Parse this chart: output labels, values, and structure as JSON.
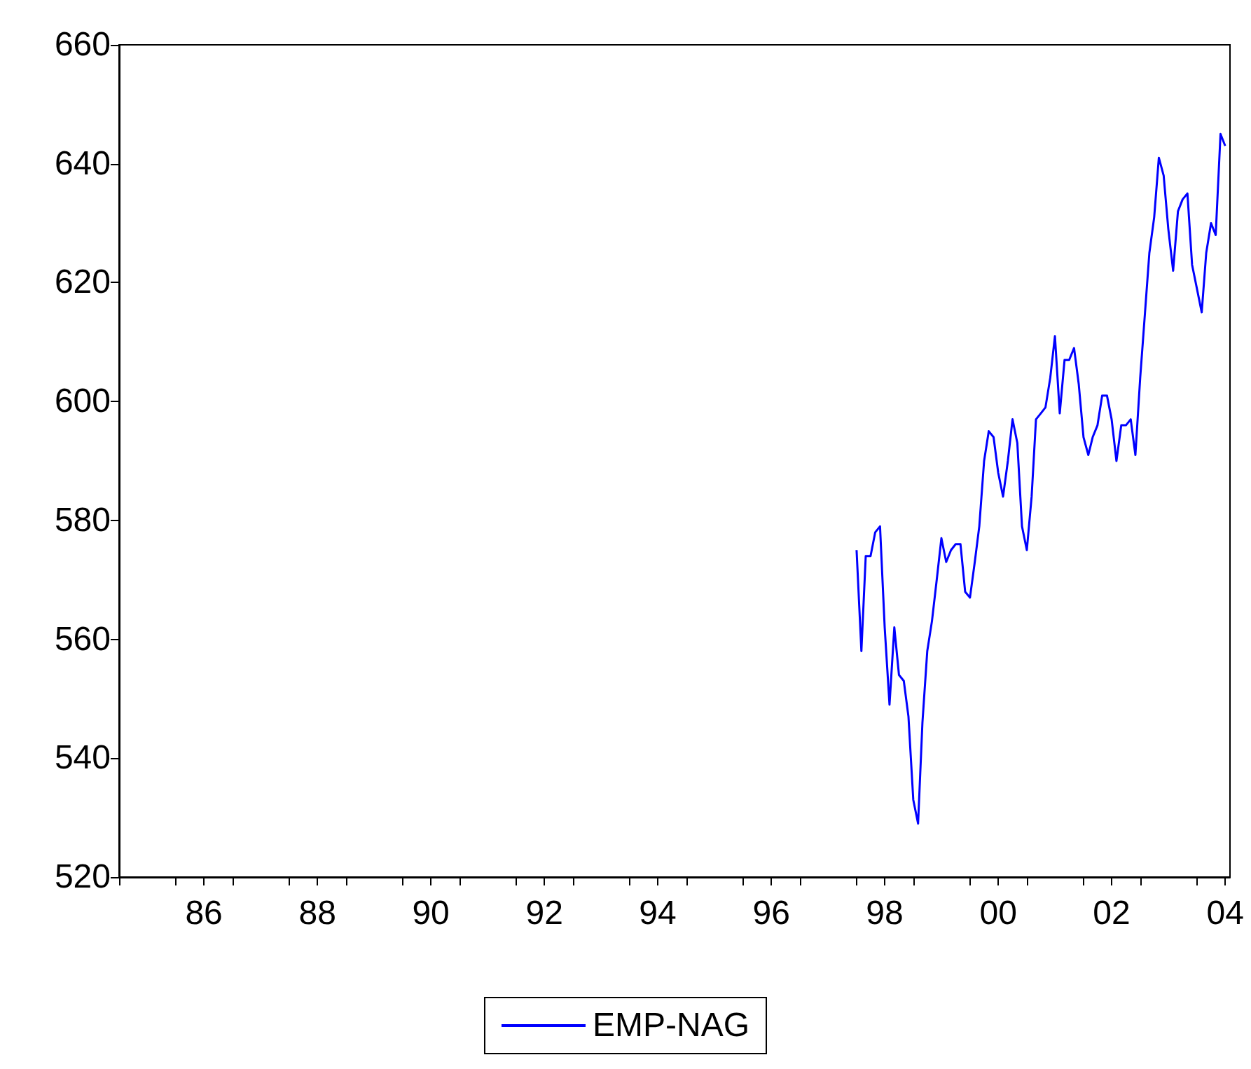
{
  "chart_data": {
    "type": "line",
    "x": [
      "1998-01",
      "1998-02",
      "1998-03",
      "1998-04",
      "1998-05",
      "1998-06",
      "1998-07",
      "1998-08",
      "1998-09",
      "1998-10",
      "1998-11",
      "1998-12",
      "1999-01",
      "1999-02",
      "1999-03",
      "1999-04",
      "1999-05",
      "1999-06",
      "1999-07",
      "1999-08",
      "1999-09",
      "1999-10",
      "1999-11",
      "1999-12",
      "2000-01",
      "2000-02",
      "2000-03",
      "2000-04",
      "2000-05",
      "2000-06",
      "2000-07",
      "2000-08",
      "2000-09",
      "2000-10",
      "2000-11",
      "2000-12",
      "2001-01",
      "2001-02",
      "2001-03",
      "2001-04",
      "2001-05",
      "2001-06",
      "2001-07",
      "2001-08",
      "2001-09",
      "2001-10",
      "2001-11",
      "2001-12",
      "2002-01",
      "2002-02",
      "2002-03",
      "2002-04",
      "2002-05",
      "2002-06",
      "2002-07",
      "2002-08",
      "2002-09",
      "2002-10",
      "2002-11",
      "2002-12",
      "2003-01",
      "2003-02",
      "2003-03",
      "2003-04",
      "2003-05",
      "2003-06",
      "2003-07",
      "2003-08",
      "2003-09",
      "2003-10",
      "2003-11",
      "2003-12",
      "2004-01",
      "2004-02",
      "2004-03",
      "2004-04",
      "2004-05",
      "2004-06",
      "2004-07"
    ],
    "series": [
      {
        "name": "EMP-NAG",
        "color": "#0000ff",
        "values": [
          575,
          558,
          574,
          574,
          578,
          579,
          562,
          549,
          562,
          554,
          553,
          547,
          533,
          529,
          546,
          558,
          563,
          570,
          577,
          573,
          575,
          576,
          576,
          568,
          567,
          573,
          579,
          590,
          595,
          594,
          588,
          584,
          590,
          597,
          593,
          579,
          575,
          584,
          597,
          598,
          599,
          604,
          611,
          598,
          607,
          607,
          609,
          603,
          594,
          591,
          594,
          596,
          601,
          601,
          597,
          590,
          596,
          596,
          597,
          591,
          604,
          615,
          625,
          631,
          641,
          638,
          629,
          622,
          632,
          634,
          635,
          623,
          619,
          615,
          625,
          630,
          628,
          645,
          643
        ]
      }
    ],
    "xlim": [
      "1985-01",
      "2004-08"
    ],
    "xticks": [
      {
        "value": "1985",
        "label": null
      },
      {
        "value": "1986",
        "label": null
      },
      {
        "value": "1986-07",
        "label": "86"
      },
      {
        "value": "1987",
        "label": null
      },
      {
        "value": "1988",
        "label": null
      },
      {
        "value": "1988-07",
        "label": "88"
      },
      {
        "value": "1989",
        "label": null
      },
      {
        "value": "1990",
        "label": null
      },
      {
        "value": "1990-07",
        "label": "90"
      },
      {
        "value": "1991",
        "label": null
      },
      {
        "value": "1992",
        "label": null
      },
      {
        "value": "1992-07",
        "label": "92"
      },
      {
        "value": "1993",
        "label": null
      },
      {
        "value": "1994",
        "label": null
      },
      {
        "value": "1994-07",
        "label": "94"
      },
      {
        "value": "1995",
        "label": null
      },
      {
        "value": "1996",
        "label": null
      },
      {
        "value": "1996-07",
        "label": "96"
      },
      {
        "value": "1997",
        "label": null
      },
      {
        "value": "1998",
        "label": null
      },
      {
        "value": "1998-07",
        "label": "98"
      },
      {
        "value": "1999",
        "label": null
      },
      {
        "value": "2000",
        "label": null
      },
      {
        "value": "2000-07",
        "label": "00"
      },
      {
        "value": "2001",
        "label": null
      },
      {
        "value": "2002",
        "label": null
      },
      {
        "value": "2002-07",
        "label": "02"
      },
      {
        "value": "2003",
        "label": null
      },
      {
        "value": "2004",
        "label": null
      },
      {
        "value": "2004-07",
        "label": "04"
      }
    ],
    "ylim": [
      520,
      660
    ],
    "yticks": [
      520,
      540,
      560,
      580,
      600,
      620,
      640,
      660
    ],
    "grid": false,
    "legend": "bottom",
    "marker": "none",
    "line_style": "solid"
  }
}
